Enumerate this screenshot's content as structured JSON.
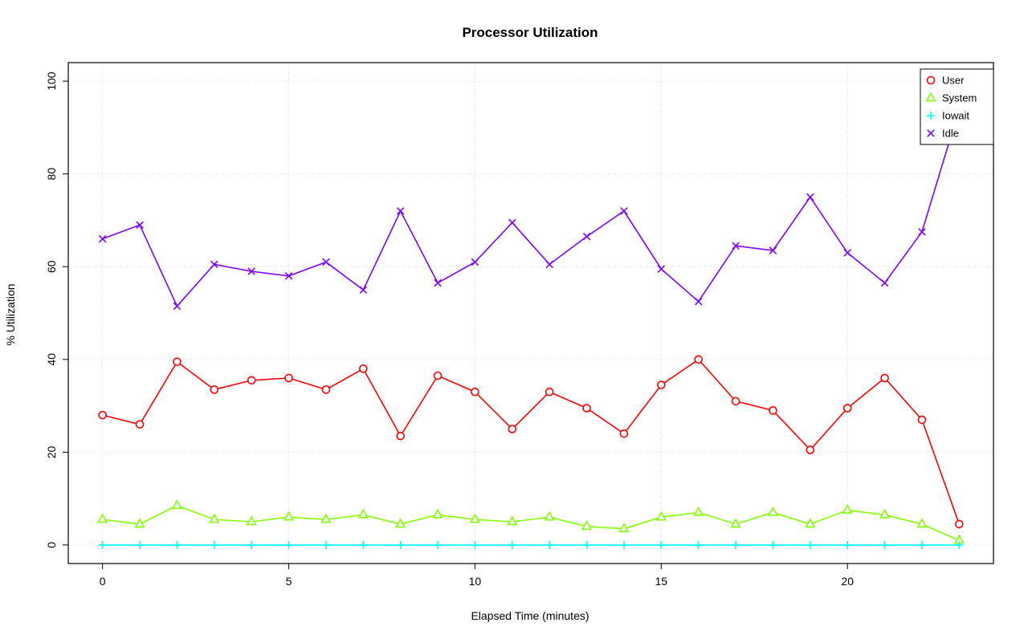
{
  "chart_data": {
    "type": "line",
    "title": "Processor Utilization",
    "xlabel": "Elapsed Time (minutes)",
    "ylabel": "% Utilization",
    "xlim": [
      0,
      23
    ],
    "ylim": [
      0,
      100
    ],
    "xticks": [
      0,
      5,
      10,
      15,
      20
    ],
    "yticks": [
      0,
      20,
      40,
      60,
      80,
      100
    ],
    "grid": true,
    "grid_color": "#d3d3d3",
    "legend_position": "topright",
    "x": [
      0,
      1,
      2,
      3,
      4,
      5,
      6,
      7,
      8,
      9,
      10,
      11,
      12,
      13,
      14,
      15,
      16,
      17,
      18,
      19,
      20,
      21,
      22,
      23
    ],
    "series": [
      {
        "name": "User",
        "color": "#FF0000",
        "marker": "circle",
        "values": [
          28,
          26,
          39.5,
          33.5,
          35.5,
          36,
          33.5,
          38,
          23.5,
          36.5,
          33,
          25,
          33,
          29.5,
          24,
          34.5,
          40,
          31,
          29,
          20.5,
          29.5,
          36,
          27,
          4.5
        ]
      },
      {
        "name": "System",
        "color": "#80FF00",
        "marker": "triangle",
        "values": [
          5.5,
          4.5,
          8.5,
          5.5,
          5,
          6,
          5.5,
          6.5,
          4.5,
          6.5,
          5.5,
          5,
          6,
          4,
          3.5,
          6,
          7,
          4.5,
          7,
          4.5,
          7.5,
          6.5,
          4.5,
          1
        ]
      },
      {
        "name": "Iowait",
        "color": "#00FFFF",
        "marker": "plus",
        "values": [
          0,
          0,
          0,
          0,
          0,
          0,
          0,
          0,
          0,
          0,
          0,
          0,
          0,
          0,
          0,
          0,
          0,
          0,
          0,
          0,
          0,
          0,
          0,
          0
        ]
      },
      {
        "name": "Idle",
        "color": "#8000FF",
        "marker": "x",
        "values": [
          66,
          69,
          51.5,
          60.5,
          59,
          58,
          61,
          55,
          72,
          56.5,
          61,
          69.5,
          60.5,
          66.5,
          72,
          59.5,
          52.5,
          64.5,
          63.5,
          75,
          63,
          56.5,
          67.5,
          94
        ]
      }
    ]
  }
}
